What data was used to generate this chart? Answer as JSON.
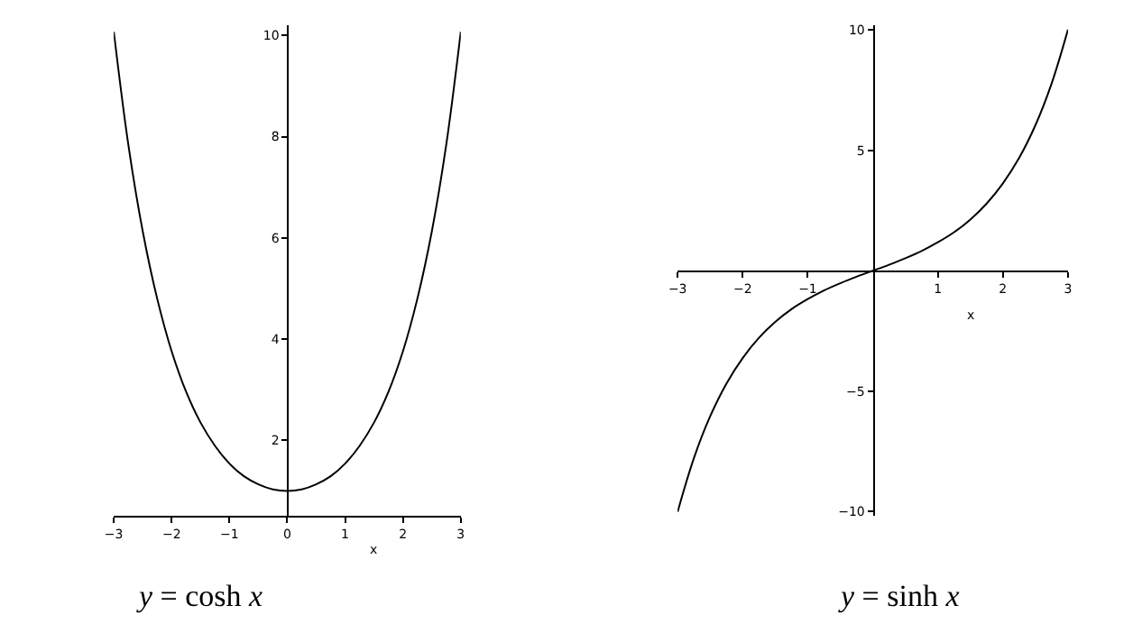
{
  "chart_data": [
    {
      "type": "line",
      "title": "y = cosh x",
      "xlabel": "x",
      "x": [
        -3,
        -2.75,
        -2.5,
        -2.25,
        -2,
        -1.75,
        -1.5,
        -1.25,
        -1,
        -0.75,
        -0.5,
        -0.25,
        0,
        0.25,
        0.5,
        0.75,
        1,
        1.25,
        1.5,
        1.75,
        2,
        2.25,
        2.5,
        2.75,
        3
      ],
      "series": [
        {
          "color": "#000000",
          "values": [
            10.07,
            7.85,
            6.13,
            4.8,
            3.76,
            2.96,
            2.35,
            1.89,
            1.54,
            1.29,
            1.13,
            1.03,
            1,
            1.03,
            1.13,
            1.29,
            1.54,
            1.89,
            2.35,
            2.96,
            3.76,
            4.8,
            6.13,
            7.85,
            10.07
          ]
        }
      ],
      "xlim": [
        -3,
        3
      ],
      "ylim": [
        0.5,
        10.2
      ],
      "xticks": [
        -3,
        -2,
        -1,
        0,
        1,
        2,
        3
      ],
      "yticks": [
        2,
        4,
        6,
        8,
        10
      ],
      "marker": "none",
      "line_style": "solid"
    },
    {
      "type": "line",
      "title": "y = sinh x",
      "xlabel": "x",
      "x": [
        -3,
        -2.75,
        -2.5,
        -2.25,
        -2,
        -1.75,
        -1.5,
        -1.25,
        -1,
        -0.75,
        -0.5,
        -0.25,
        0,
        0.25,
        0.5,
        0.75,
        1,
        1.25,
        1.5,
        1.75,
        2,
        2.25,
        2.5,
        2.75,
        3
      ],
      "series": [
        {
          "color": "#000000",
          "values": [
            -10.02,
            -7.79,
            -6.05,
            -4.69,
            -3.63,
            -2.79,
            -2.13,
            -1.6,
            -1.18,
            -0.82,
            -0.52,
            -0.25,
            0,
            0.25,
            0.52,
            0.82,
            1.18,
            1.6,
            2.13,
            2.79,
            3.63,
            4.69,
            6.05,
            7.79,
            10.02
          ]
        }
      ],
      "xlim": [
        -3,
        3
      ],
      "ylim": [
        -10.2,
        10.2
      ],
      "xticks": [
        -3,
        -2,
        -1,
        1,
        2,
        3
      ],
      "yticks": [
        -10,
        -5,
        5,
        10
      ],
      "marker": "none",
      "line_style": "solid"
    }
  ]
}
